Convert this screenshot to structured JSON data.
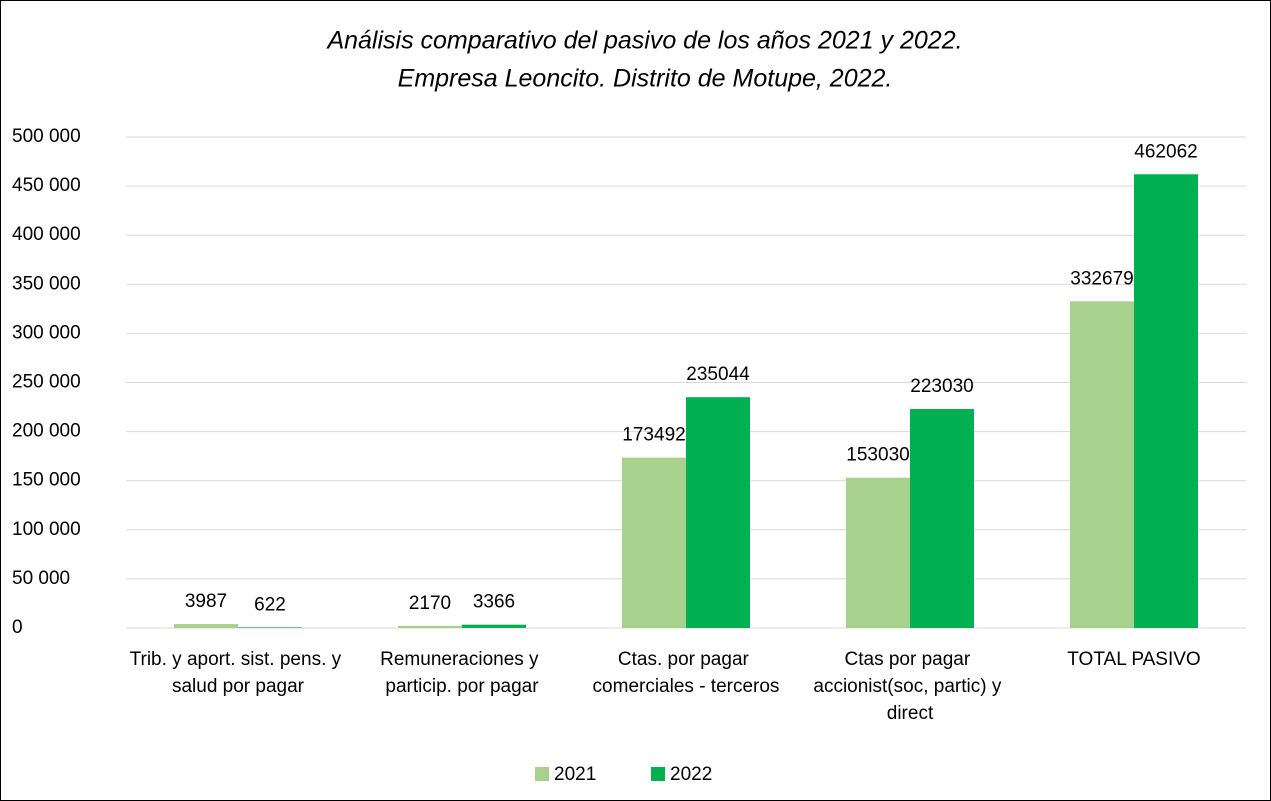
{
  "chart_data": {
    "type": "bar",
    "title": [
      "Análisis comparativo del pasivo de los años 2021 y 2022.",
      "Empresa Leoncito. Distrito de Motupe, 2022."
    ],
    "categories": [
      "Trib. y aport. sist. pens. y salud por pagar",
      "Remuneraciones y particip. por pagar",
      "Ctas. por pagar comerciales - terceros",
      "Ctas por pagar accionist(soc, partic) y direct",
      "TOTAL PASIVO"
    ],
    "series": [
      {
        "name": "2021",
        "color": "#a9d18e",
        "values": [
          3987,
          2170,
          173492,
          153030,
          332679
        ]
      },
      {
        "name": "2022",
        "color": "#00b050",
        "values": [
          622,
          3366,
          235044,
          223030,
          462062
        ]
      }
    ],
    "ylim": [
      0,
      500000
    ],
    "yticks": [
      0,
      {
        "value": 50000,
        "label": "50 000"
      },
      {
        "value": 100000,
        "label": "100 000"
      },
      {
        "value": 150000,
        "label": "150 000"
      },
      {
        "value": 200000,
        "label": "200 000"
      },
      {
        "value": 250000,
        "label": "250 000"
      },
      {
        "value": 300000,
        "label": "300 000"
      },
      {
        "value": 350000,
        "label": "350 000"
      },
      {
        "value": 400000,
        "label": "400 000"
      },
      {
        "value": 450000,
        "label": "450 000"
      },
      {
        "value": 500000,
        "label": "500 000"
      }
    ],
    "grid": true,
    "legend": "bottom"
  }
}
